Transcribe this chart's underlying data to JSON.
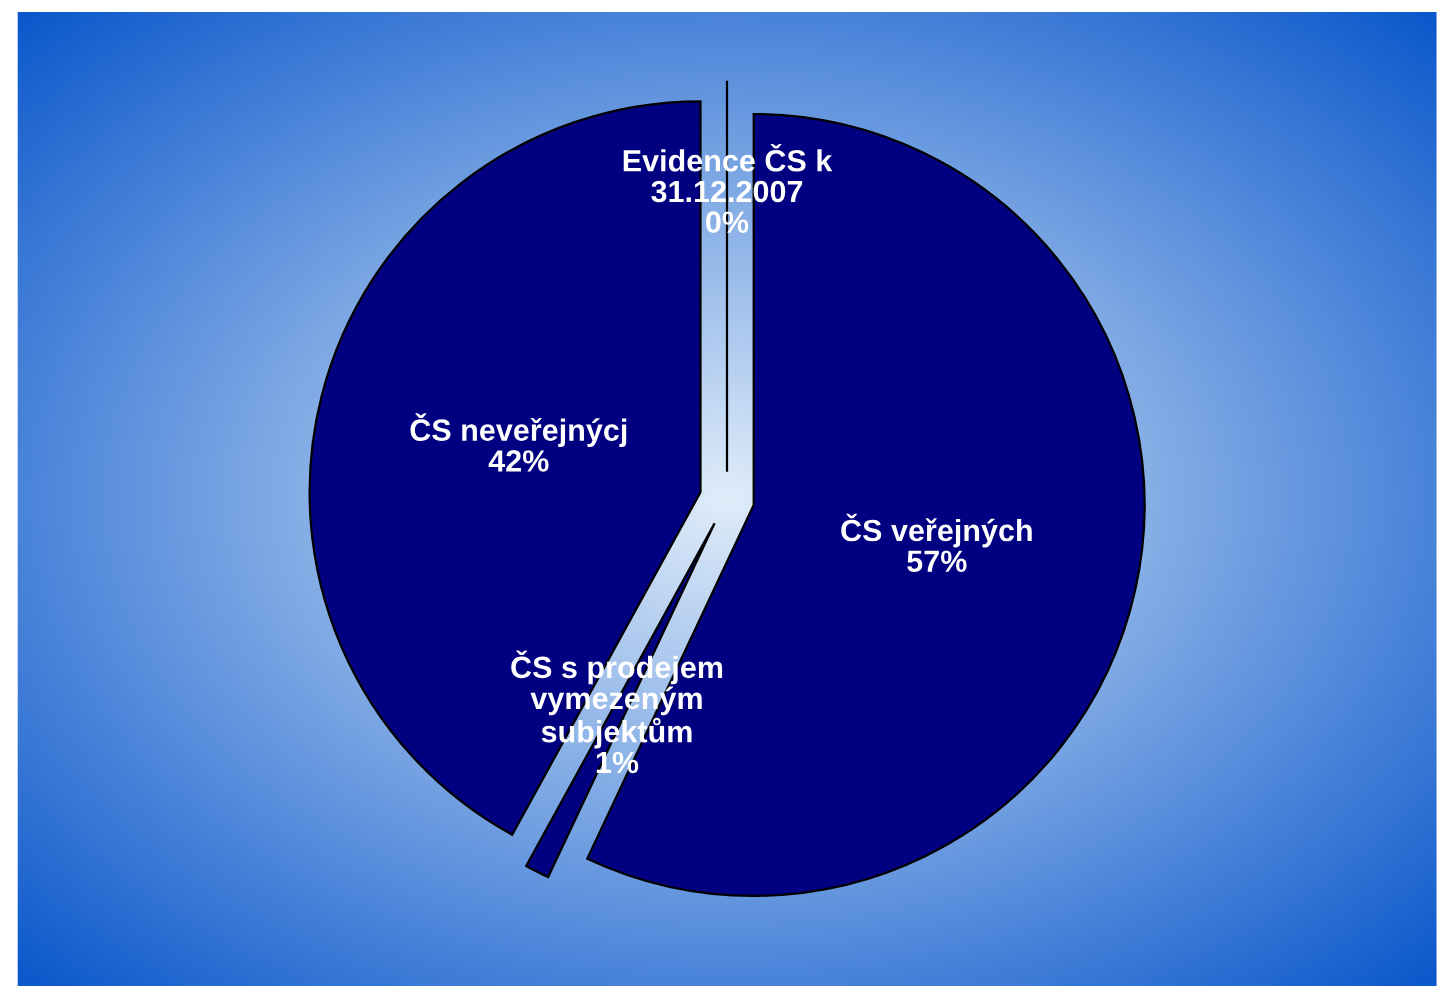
{
  "chart_data": {
    "type": "pie",
    "categories": [
      "Evidence ČS k\n31.12.2007",
      "ČS veřejných",
      "ČS s prodejem\nvymezeným\nsubjektům",
      "ČS neveřejnýcj"
    ],
    "values": [
      0,
      57,
      1,
      42
    ],
    "value_labels": [
      "0%",
      "57%",
      "1%",
      "42%"
    ],
    "colors": [
      "#000080",
      "#000080",
      "#000080",
      "#000080"
    ]
  }
}
